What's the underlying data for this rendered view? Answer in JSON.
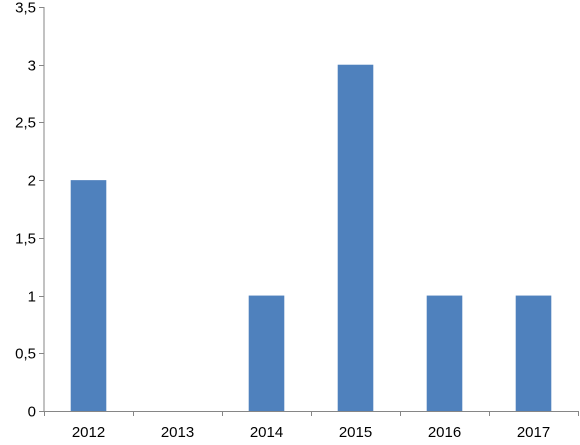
{
  "chart_data": {
    "type": "bar",
    "categories": [
      "2012",
      "2013",
      "2014",
      "2015",
      "2016",
      "2017"
    ],
    "values": [
      2,
      0,
      1,
      3,
      1,
      1
    ],
    "yticks": [
      "0",
      "0,5",
      "1",
      "1,5",
      "2",
      "2,5",
      "3",
      "3,5"
    ],
    "ylim": [
      0,
      3.5
    ],
    "grid": false,
    "legend": "none",
    "title": "",
    "xlabel": "",
    "ylabel": "",
    "bar_color": "#4F81BD",
    "axis_color": "#868686"
  }
}
